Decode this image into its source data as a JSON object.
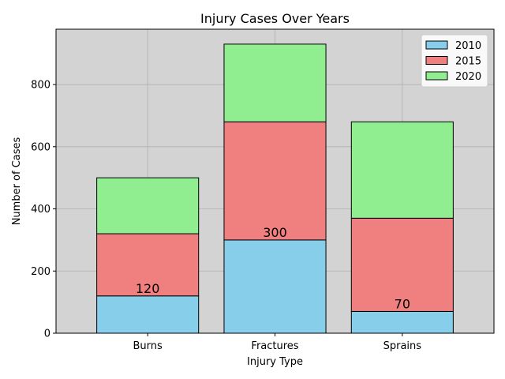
{
  "chart_data": {
    "type": "bar",
    "stacked": true,
    "title": "Injury Cases Over Years",
    "xlabel": "Injury Type",
    "ylabel": "Number of Cases",
    "categories": [
      "Burns",
      "Fractures",
      "Sprains"
    ],
    "series": [
      {
        "name": "2010",
        "values": [
          120,
          300,
          70
        ],
        "color": "#87ceeb"
      },
      {
        "name": "2015",
        "values": [
          200,
          380,
          300
        ],
        "color": "#f08080"
      },
      {
        "name": "2020",
        "values": [
          180,
          250,
          310
        ],
        "color": "#90ee90"
      }
    ],
    "data_labels": [
      {
        "category": "Burns",
        "text": "120"
      },
      {
        "category": "Fractures",
        "text": "300"
      },
      {
        "category": "Sprains",
        "text": "70"
      }
    ],
    "ylim": [
      0,
      978
    ],
    "yticks": [
      0,
      200,
      400,
      600,
      800
    ],
    "grid": true,
    "legend_position": "top-right",
    "background_color": "#d3d3d3",
    "edge_color": "#000000"
  }
}
